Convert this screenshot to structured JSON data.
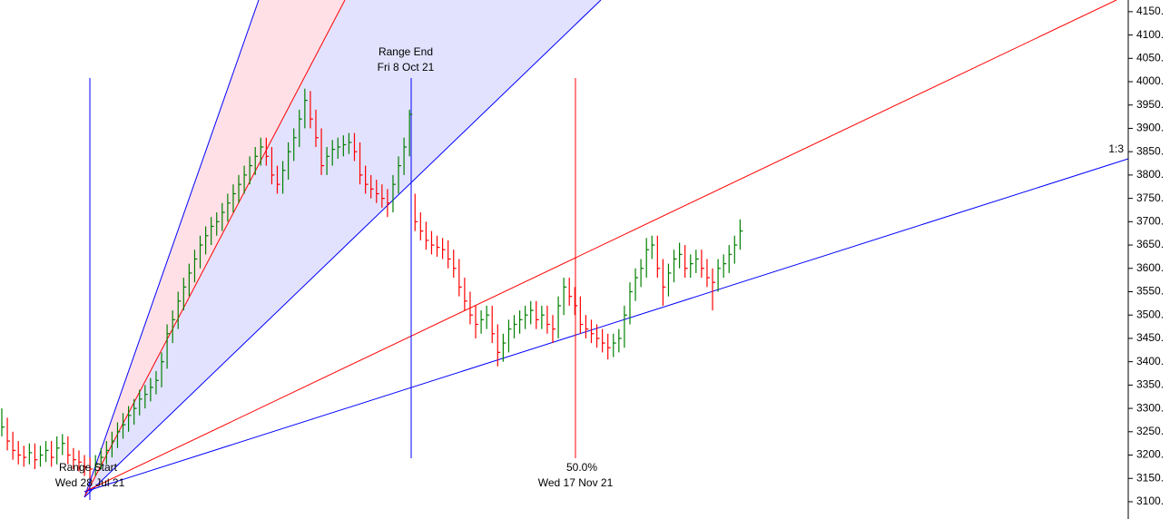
{
  "chart_data": {
    "type": "ohlc",
    "ylim": [
      3063,
      4175
    ],
    "yticks": [
      {
        "value": 3100,
        "label": "3100."
      },
      {
        "value": 3150,
        "label": "3150."
      },
      {
        "value": 3200,
        "label": "3200."
      },
      {
        "value": 3250,
        "label": "3250."
      },
      {
        "value": 3300,
        "label": "3300."
      },
      {
        "value": 3350,
        "label": "3350."
      },
      {
        "value": 3400,
        "label": "3400."
      },
      {
        "value": 3450,
        "label": "3450."
      },
      {
        "value": 3500,
        "label": "3500."
      },
      {
        "value": 3550,
        "label": "3550."
      },
      {
        "value": 3600,
        "label": "3600."
      },
      {
        "value": 3650,
        "label": "3650."
      },
      {
        "value": 3700,
        "label": "3700."
      },
      {
        "value": 3750,
        "label": "3750."
      },
      {
        "value": 3800,
        "label": "3800."
      },
      {
        "value": 3850,
        "label": "3850."
      },
      {
        "value": 3900,
        "label": "3900."
      },
      {
        "value": 3950,
        "label": "3950."
      },
      {
        "value": 4000,
        "label": "4000."
      },
      {
        "value": 4050,
        "label": "4050."
      },
      {
        "value": 4100,
        "label": "4100."
      },
      {
        "value": 4150,
        "label": "4150."
      }
    ],
    "up_color": "#008000",
    "down_color": "#ff0000",
    "high": [
      3300,
      3280,
      3250,
      3230,
      3220,
      3225,
      3225,
      3220,
      3230,
      3230,
      3240,
      3245,
      3240,
      3215,
      3210,
      3200,
      3195,
      3200,
      3215,
      3230,
      3250,
      3270,
      3290,
      3305,
      3320,
      3340,
      3350,
      3365,
      3380,
      3420,
      3480,
      3510,
      3550,
      3580,
      3610,
      3640,
      3670,
      3690,
      3710,
      3720,
      3740,
      3760,
      3780,
      3800,
      3820,
      3840,
      3860,
      3880,
      3880,
      3860,
      3820,
      3830,
      3870,
      3900,
      3940,
      3985,
      3980,
      3940,
      3900,
      3860,
      3875,
      3880,
      3885,
      3890,
      3890,
      3870,
      3820,
      3800,
      3790,
      3780,
      3770,
      3800,
      3840,
      3880,
      3940,
      3760,
      3720,
      3700,
      3680,
      3670,
      3665,
      3660,
      3640,
      3620,
      3580,
      3550,
      3520,
      3510,
      3520,
      3520,
      3480,
      3460,
      3490,
      3500,
      3510,
      3520,
      3530,
      3530,
      3520,
      3520,
      3500,
      3540,
      3580,
      3580,
      3560,
      3540,
      3500,
      3490,
      3480,
      3470,
      3460,
      3460,
      3470,
      3520,
      3570,
      3600,
      3620,
      3665,
      3670,
      3670,
      3620,
      3610,
      3640,
      3655,
      3650,
      3630,
      3640,
      3640,
      3620,
      3600,
      3620,
      3630,
      3650,
      3670,
      3705
    ],
    "low": [
      3240,
      3210,
      3190,
      3180,
      3175,
      3180,
      3170,
      3175,
      3185,
      3175,
      3180,
      3200,
      3180,
      3170,
      3165,
      3155,
      3150,
      3155,
      3170,
      3180,
      3195,
      3215,
      3235,
      3250,
      3265,
      3285,
      3300,
      3315,
      3330,
      3345,
      3385,
      3440,
      3470,
      3510,
      3540,
      3570,
      3600,
      3630,
      3650,
      3670,
      3680,
      3700,
      3720,
      3740,
      3760,
      3780,
      3800,
      3820,
      3820,
      3780,
      3760,
      3760,
      3790,
      3830,
      3860,
      3900,
      3900,
      3860,
      3800,
      3800,
      3820,
      3835,
      3840,
      3845,
      3830,
      3780,
      3760,
      3750,
      3740,
      3730,
      3710,
      3720,
      3760,
      3800,
      3840,
      3680,
      3660,
      3640,
      3630,
      3625,
      3620,
      3600,
      3580,
      3540,
      3510,
      3480,
      3450,
      3460,
      3470,
      3440,
      3390,
      3400,
      3420,
      3450,
      3460,
      3470,
      3480,
      3470,
      3470,
      3460,
      3440,
      3450,
      3500,
      3520,
      3500,
      3460,
      3450,
      3440,
      3430,
      3420,
      3405,
      3410,
      3420,
      3430,
      3480,
      3530,
      3560,
      3580,
      3620,
      3580,
      3520,
      3540,
      3570,
      3600,
      3580,
      3580,
      3590,
      3580,
      3560,
      3510,
      3550,
      3580,
      3590,
      3610,
      3640
    ],
    "close": [
      3260,
      3230,
      3210,
      3200,
      3195,
      3205,
      3190,
      3200,
      3210,
      3195,
      3215,
      3225,
      3200,
      3190,
      3185,
      3175,
      3170,
      3180,
      3195,
      3210,
      3230,
      3250,
      3265,
      3285,
      3300,
      3320,
      3330,
      3345,
      3360,
      3400,
      3460,
      3490,
      3530,
      3560,
      3590,
      3620,
      3650,
      3670,
      3690,
      3700,
      3720,
      3740,
      3760,
      3780,
      3800,
      3820,
      3840,
      3860,
      3840,
      3800,
      3780,
      3810,
      3850,
      3880,
      3920,
      3960,
      3920,
      3880,
      3820,
      3840,
      3855,
      3860,
      3865,
      3870,
      3850,
      3800,
      3780,
      3770,
      3760,
      3750,
      3740,
      3780,
      3820,
      3860,
      3930,
      3700,
      3680,
      3660,
      3650,
      3645,
      3640,
      3620,
      3600,
      3560,
      3530,
      3500,
      3480,
      3490,
      3500,
      3460,
      3420,
      3440,
      3470,
      3480,
      3490,
      3500,
      3510,
      3490,
      3500,
      3480,
      3470,
      3520,
      3560,
      3540,
      3520,
      3480,
      3470,
      3460,
      3450,
      3440,
      3430,
      3440,
      3450,
      3500,
      3550,
      3580,
      3600,
      3640,
      3650,
      3600,
      3560,
      3590,
      3620,
      3630,
      3600,
      3610,
      3620,
      3600,
      3580,
      3570,
      3600,
      3610,
      3630,
      3650,
      3680
    ],
    "annotations": [
      "Range End",
      "Fri 8 Oct 21",
      "Range Start",
      "Wed 28 Jul 21",
      "50.0%",
      "Wed 17 Nov 21",
      "1:3"
    ]
  }
}
